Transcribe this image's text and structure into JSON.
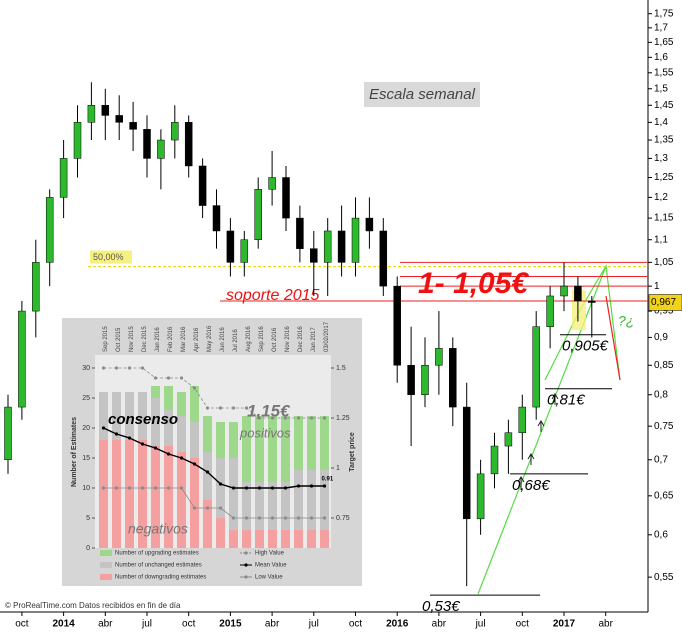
{
  "chart_data": [
    {
      "type": "candlestick",
      "categories": [
        null,
        "oct",
        null,
        null,
        "2014",
        null,
        null,
        "abr",
        null,
        null,
        "jul",
        null,
        null,
        "oct",
        null,
        null,
        "2015",
        null,
        null,
        "abr",
        null,
        null,
        "jul",
        null,
        null,
        "oct",
        null,
        null,
        "2016",
        null,
        null,
        "abr",
        null,
        null,
        "jul",
        null,
        null,
        "oct",
        null,
        null,
        "2017",
        null,
        null,
        "abr"
      ],
      "open": [
        0.7,
        0.78,
        0.95,
        1.05,
        1.2,
        1.3,
        1.4,
        1.45,
        1.42,
        1.4,
        1.38,
        1.3,
        1.35,
        1.4,
        1.28,
        1.18,
        1.12,
        1.05,
        1.1,
        1.22,
        1.25,
        1.15,
        1.08,
        1.05,
        1.12,
        1.05,
        1.15,
        1.12,
        1.0,
        0.85,
        0.8,
        0.85,
        0.88,
        0.78,
        0.62,
        0.68,
        0.72,
        0.74,
        0.78,
        0.92,
        0.98,
        1.0,
        0.97,
        null
      ],
      "high": [
        0.8,
        0.97,
        1.1,
        1.22,
        1.35,
        1.45,
        1.52,
        1.5,
        1.48,
        1.46,
        1.42,
        1.38,
        1.45,
        1.42,
        1.3,
        1.22,
        1.15,
        1.12,
        1.25,
        1.32,
        1.28,
        1.18,
        1.12,
        1.15,
        1.18,
        1.2,
        1.2,
        1.15,
        1.02,
        0.92,
        0.9,
        0.95,
        0.9,
        0.82,
        0.7,
        0.74,
        0.76,
        0.8,
        0.95,
        1.0,
        1.05,
        1.02,
        0.98,
        null
      ],
      "low": [
        0.68,
        0.76,
        0.9,
        1.0,
        1.15,
        1.25,
        1.35,
        1.35,
        1.35,
        1.32,
        1.25,
        1.22,
        1.3,
        1.25,
        1.15,
        1.08,
        1.02,
        1.02,
        1.08,
        1.18,
        1.12,
        1.05,
        0.98,
        0.98,
        1.02,
        1.02,
        1.08,
        0.98,
        0.82,
        0.72,
        0.78,
        0.8,
        0.75,
        0.54,
        0.6,
        0.66,
        0.68,
        0.7,
        0.76,
        0.88,
        0.95,
        0.93,
        0.9,
        null
      ],
      "close": [
        0.78,
        0.95,
        1.05,
        1.2,
        1.3,
        1.4,
        1.45,
        1.42,
        1.4,
        1.38,
        1.3,
        1.35,
        1.4,
        1.28,
        1.18,
        1.12,
        1.05,
        1.1,
        1.22,
        1.25,
        1.15,
        1.08,
        1.05,
        1.12,
        1.05,
        1.15,
        1.12,
        1.0,
        0.85,
        0.8,
        0.85,
        0.88,
        0.78,
        0.62,
        0.68,
        0.72,
        0.74,
        0.78,
        0.92,
        0.98,
        1.0,
        0.97,
        0.967,
        null
      ],
      "up_color": "#2db82d",
      "down_color": "#000000",
      "log_scale": true,
      "ylim": [
        0.512,
        1.8
      ],
      "yticks": [
        {
          "value": 0.55,
          "label": "0,55"
        },
        {
          "value": 0.6,
          "label": "0,6"
        },
        {
          "value": 0.65,
          "label": "0,65"
        },
        {
          "value": 0.7,
          "label": "0,7"
        },
        {
          "value": 0.75,
          "label": "0,75"
        },
        {
          "value": 0.8,
          "label": "0,8"
        },
        {
          "value": 0.85,
          "label": "0,85"
        },
        {
          "value": 0.9,
          "label": "0,9"
        },
        {
          "value": 0.95,
          "label": "0,95"
        },
        1,
        {
          "value": 1.05,
          "label": "1,05"
        },
        {
          "value": 1.1,
          "label": "1,1"
        },
        {
          "value": 1.15,
          "label": "1,15"
        },
        {
          "value": 1.2,
          "label": "1,2"
        },
        {
          "value": 1.25,
          "label": "1,25"
        },
        {
          "value": 1.3,
          "label": "1,3"
        },
        {
          "value": 1.35,
          "label": "1,35"
        },
        {
          "value": 1.4,
          "label": "1,4"
        },
        {
          "value": 1.45,
          "label": "1,45"
        },
        {
          "value": 1.5,
          "label": "1,5"
        },
        {
          "value": 1.55,
          "label": "1,55"
        },
        {
          "value": 1.6,
          "label": "1,6"
        },
        {
          "value": 1.65,
          "label": "1,65"
        },
        {
          "value": 1.7,
          "label": "1,7"
        },
        {
          "value": 1.75,
          "label": "1,75"
        }
      ],
      "last_price": {
        "value": 0.967,
        "label": "0,967"
      },
      "title": "Escala semanal",
      "fib_level": {
        "value": 1.041,
        "label": "50,00%"
      },
      "resistance_lines": [
        1.05,
        1.02,
        1.0,
        0.97
      ],
      "resistance_label": "1- 1,05€",
      "support_label": "soporte 2015",
      "levels": [
        {
          "value": 0.905,
          "label": "0,905€"
        },
        {
          "value": 0.81,
          "label": "0,81€"
        },
        {
          "value": 0.68,
          "label": "0,68€"
        },
        {
          "value": 0.53,
          "label": "0,53€"
        }
      ],
      "question": "?¿",
      "footer": "© ProRealTime.com  Datos recibidos en fin de día"
    },
    {
      "type": "bar",
      "stacked": true,
      "categories": [
        "Sep 2015",
        "Oct 2015",
        "Nov 2015",
        "Dec 2015",
        "Jan 2016",
        "Feb 2016",
        "Mar 2016",
        "Apr 2016",
        "May 2016",
        "Jun 2016",
        "Jul 2016",
        "Aug 2016",
        "Sep 2016",
        "Oct 2016",
        "Nov 2016",
        "Dec 2016",
        "Jan 2017",
        "03/02/2017"
      ],
      "series": [
        {
          "name": "Number of downgrading estimates",
          "color": "#f4a0a0",
          "values": [
            18,
            18,
            18,
            18,
            17,
            17,
            16,
            15,
            8,
            5,
            3,
            3,
            3,
            3,
            3,
            3,
            3,
            3
          ]
        },
        {
          "name": "Number of unchanged estimates",
          "color": "#c4c4c4",
          "values": [
            8,
            8,
            8,
            8,
            8,
            6,
            6,
            6,
            8,
            10,
            12,
            8,
            8,
            8,
            8,
            10,
            10,
            10
          ]
        },
        {
          "name": "Number of upgrading estimates",
          "color": "#9ed88a",
          "values": [
            0,
            0,
            0,
            0,
            2,
            4,
            4,
            6,
            6,
            6,
            6,
            11,
            11,
            11,
            11,
            9,
            9,
            9
          ]
        },
        {
          "name": "High Value",
          "color": "#8a8a8a",
          "type": "line",
          "axis": "y2",
          "dashed": true,
          "values": [
            1.5,
            1.5,
            1.5,
            1.5,
            1.45,
            1.45,
            1.45,
            1.4,
            1.3,
            1.3,
            1.3,
            1.3,
            1.25,
            1.25,
            1.25,
            1.25,
            1.25,
            1.25
          ]
        },
        {
          "name": "Mean Value",
          "color": "#000000",
          "type": "line",
          "axis": "y2",
          "values": [
            1.2,
            1.17,
            1.15,
            1.12,
            1.1,
            1.07,
            1.05,
            1.02,
            0.98,
            0.92,
            0.9,
            0.9,
            0.9,
            0.9,
            0.9,
            0.91,
            0.91,
            0.91
          ]
        },
        {
          "name": "Low Value",
          "color": "#8a8a8a",
          "type": "line",
          "axis": "y2",
          "values": [
            0.9,
            0.9,
            0.9,
            0.9,
            0.9,
            0.9,
            0.9,
            0.8,
            0.8,
            0.8,
            0.75,
            0.75,
            0.75,
            0.75,
            0.75,
            0.75,
            0.75,
            0.75
          ]
        }
      ],
      "ylabel": "Number of Estimates",
      "y2label": "Target price",
      "ylim": [
        0,
        30
      ],
      "yticks": [
        0,
        5,
        10,
        15,
        20,
        25,
        30
      ],
      "y2lim": [
        0.6,
        1.5
      ],
      "y2ticks": [
        0.75,
        1,
        1.25,
        1.5
      ],
      "annotations": [
        "consenso",
        "1,15€",
        "positivos",
        "negativos"
      ]
    }
  ]
}
